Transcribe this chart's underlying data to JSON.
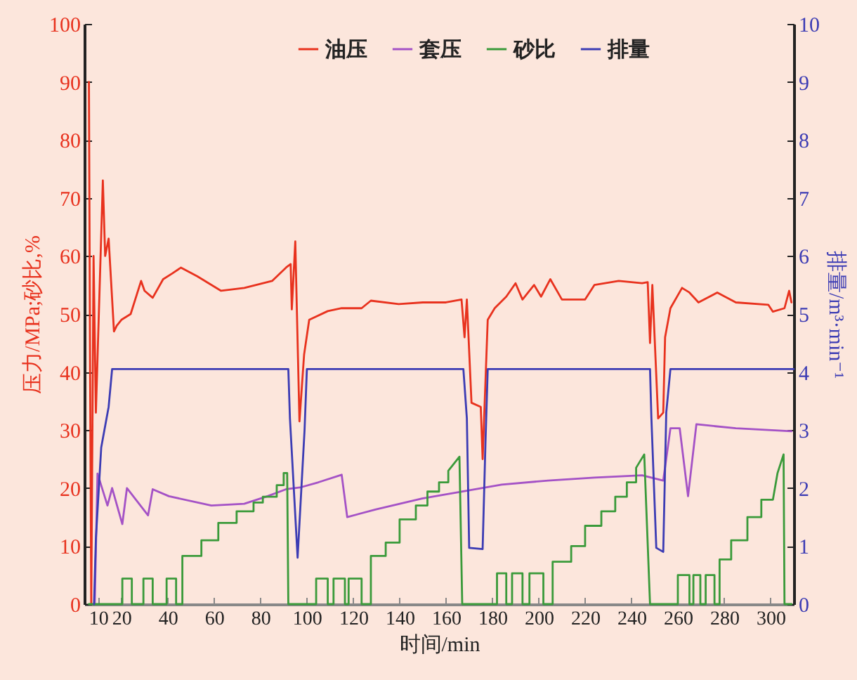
{
  "chart_data": {
    "type": "line",
    "xlabel": "时间/min",
    "ylabel": "压力/MPa;砂比,%",
    "y2label": "排量/m³·min⁻¹",
    "xlim": [
      4,
      310
    ],
    "xticks": [
      10,
      20,
      40,
      60,
      80,
      100,
      120,
      140,
      160,
      180,
      200,
      220,
      240,
      260,
      280,
      300
    ],
    "ylim": [
      0,
      100
    ],
    "yticks": [
      0,
      10,
      20,
      30,
      40,
      50,
      60,
      70,
      80,
      90,
      100
    ],
    "y2lim": [
      0,
      10
    ],
    "y2ticks": [
      0,
      1,
      2,
      3,
      4,
      5,
      6,
      7,
      8,
      9,
      10
    ],
    "legend": "top",
    "series": [
      {
        "name": "油压",
        "color": "#e8321e",
        "x": [
          6,
          6.5,
          7,
          8,
          9,
          12,
          13,
          14.5,
          16.8,
          18,
          20,
          24,
          28.5,
          30,
          33.5,
          38,
          42,
          45.7,
          52.7,
          63,
          73,
          85,
          91,
          93,
          93.5,
          95,
          96.8,
          98.8,
          101,
          109,
          115,
          123.6,
          127.6,
          139.6,
          150,
          160,
          166.7,
          168,
          169,
          171,
          175,
          175.8,
          178,
          181,
          186,
          190,
          193,
          198,
          201,
          205,
          210,
          220,
          224,
          234.5,
          244.6,
          247,
          248,
          249,
          251.5,
          253.7,
          254.5,
          256.8,
          261.8,
          265,
          268.9,
          277,
          285,
          299,
          301,
          306,
          308,
          309
        ],
        "values": [
          90,
          40,
          0,
          60,
          33,
          73,
          60,
          63,
          47,
          48,
          49,
          50,
          55.7,
          54,
          52.8,
          56,
          57,
          58,
          56.5,
          54,
          54.5,
          55.7,
          58,
          58.6,
          50.8,
          62.5,
          31.5,
          43,
          49,
          50.5,
          51,
          51,
          52.3,
          51.7,
          52,
          52,
          52.5,
          46,
          52.5,
          34.7,
          34,
          25,
          49,
          51,
          53,
          55.3,
          52.5,
          55,
          53,
          56,
          52.5,
          52.5,
          55,
          55.7,
          55.3,
          55.5,
          45,
          55,
          32,
          33,
          46,
          51,
          54.5,
          53.7,
          52,
          53.7,
          52,
          51.6,
          50.4,
          51,
          54,
          52
        ]
      },
      {
        "name": "套压",
        "color": "#a452c6",
        "x": [
          8.5,
          9.7,
          14,
          16,
          20.4,
          22.4,
          31.5,
          33.5,
          40.5,
          58.8,
          73,
          83,
          91,
          97,
          105,
          115,
          117.4,
          129.5,
          149.7,
          166.7,
          184,
          204,
          224,
          244.6,
          253.7,
          256.8,
          260.8,
          264.4,
          268,
          285,
          309
        ],
        "values": [
          0,
          22.5,
          17,
          20,
          13.8,
          20,
          15.3,
          19.8,
          18.6,
          17,
          17.3,
          18.6,
          19.8,
          20.1,
          21,
          22.3,
          15,
          16.3,
          18.2,
          19.4,
          20.6,
          21.3,
          21.8,
          22.2,
          21.3,
          30.3,
          30.3,
          18.6,
          31,
          30.3,
          29.8
        ]
      },
      {
        "name": "砂比",
        "color": "#3a9a3a",
        "x": [
          6,
          20.4,
          20.4,
          24.5,
          24.5,
          29.5,
          29.5,
          33.5,
          33.5,
          39.5,
          39.5,
          43.6,
          43.6,
          46.3,
          46.3,
          54.5,
          54.5,
          61.8,
          61.8,
          69.7,
          69.7,
          77,
          77,
          81,
          81,
          87,
          87,
          90,
          90,
          91.5,
          92,
          104,
          104,
          109,
          109,
          111.5,
          111.5,
          116.4,
          116.4,
          118,
          118,
          123.6,
          123.6,
          127.6,
          127.6,
          134,
          134,
          140,
          140,
          147,
          147,
          152,
          152,
          157,
          157,
          161,
          161,
          165.8,
          167,
          182,
          182,
          186,
          186,
          188.5,
          188.5,
          193,
          193,
          196,
          196,
          202,
          202,
          206,
          206,
          214,
          214,
          220,
          220,
          227,
          227,
          233,
          233,
          238,
          238,
          242,
          242,
          245.5,
          248,
          260,
          260,
          265,
          265,
          266.7,
          266.7,
          269.7,
          269.7,
          272,
          272,
          275.8,
          275.8,
          278,
          278,
          283,
          283,
          290,
          290,
          296,
          296,
          301,
          303,
          305.6,
          306,
          309
        ],
        "values": [
          0,
          0,
          4.4,
          4.4,
          0,
          0,
          4.4,
          4.4,
          0,
          0,
          4.4,
          4.4,
          0,
          0,
          8.3,
          8.3,
          11,
          11,
          14,
          14,
          16,
          16,
          17.5,
          17.5,
          18.5,
          18.5,
          20.5,
          20.5,
          22.6,
          22.6,
          0,
          0,
          4.4,
          4.4,
          0,
          0,
          4.4,
          4.4,
          0,
          0,
          4.4,
          4.4,
          0,
          0,
          8.3,
          8.3,
          10.6,
          10.6,
          14.6,
          14.6,
          17,
          17,
          19.4,
          19.4,
          21,
          21,
          23,
          25.4,
          0,
          0,
          5.3,
          5.3,
          0,
          0,
          5.3,
          5.3,
          0,
          0,
          5.3,
          5.3,
          0,
          0,
          7.3,
          7.3,
          10,
          10,
          13.5,
          13.5,
          16,
          16,
          18.5,
          18.5,
          21,
          21,
          23.5,
          25.8,
          0,
          0,
          5,
          5,
          0,
          0,
          5,
          5,
          0,
          0,
          5,
          5,
          0,
          0,
          7.7,
          7.7,
          11,
          11,
          15,
          15,
          18,
          18,
          22.6,
          25.8,
          0,
          0
        ]
      },
      {
        "name": "排量",
        "color": "#3c3cb4",
        "axis": "y2",
        "x": [
          8.2,
          9,
          11.3,
          14.5,
          16,
          92,
          92.7,
          96,
          99,
          100,
          167.5,
          169,
          170,
          175.8,
          177,
          178,
          248,
          248.6,
          250.7,
          253.7,
          255,
          256.8,
          310
        ],
        "values": [
          0,
          1.13,
          2.7,
          3.4,
          4.05,
          4.05,
          3.2,
          0.8,
          3.0,
          4.05,
          4.05,
          3.2,
          0.97,
          0.95,
          2.75,
          4.05,
          4.05,
          3.2,
          0.97,
          0.9,
          3.3,
          4.05,
          4.05
        ]
      }
    ]
  }
}
